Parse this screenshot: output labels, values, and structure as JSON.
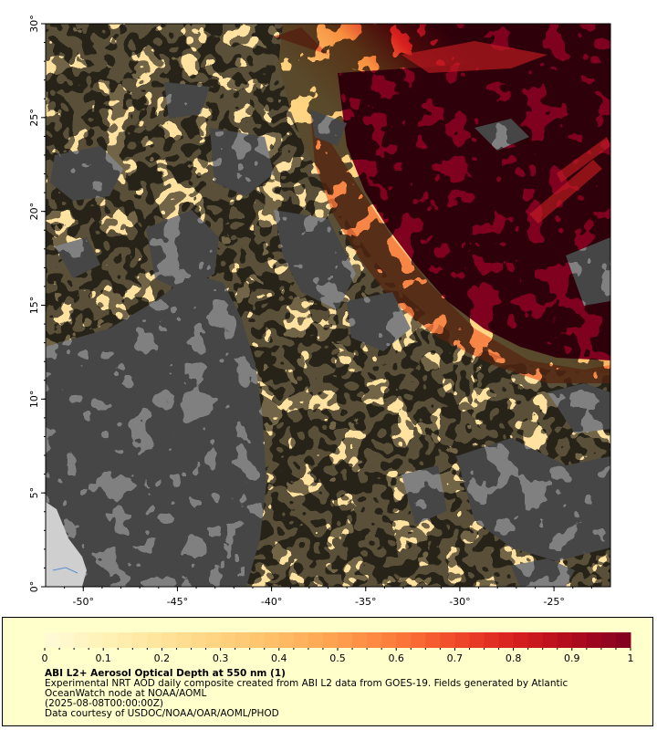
{
  "map": {
    "x_ticks": [
      "-50°",
      "-45°",
      "-40°",
      "-35°",
      "-30°",
      "-25°"
    ],
    "y_ticks": [
      "0°",
      "5°",
      "10°",
      "15°",
      "20°",
      "25°",
      "30°"
    ],
    "lon_range": [
      -52,
      -22
    ],
    "lat_range": [
      0,
      30
    ],
    "colors": {
      "no_data": "#808080",
      "land": "#cfcfcf",
      "low_aod": "#ffe9a8",
      "high_aod": "#800020"
    }
  },
  "colorbar": {
    "labels": [
      "0",
      "0.1",
      "0.2",
      "0.3",
      "0.4",
      "0.5",
      "0.6",
      "0.7",
      "0.8",
      "0.9",
      "1"
    ],
    "range": [
      0,
      1
    ],
    "colors": [
      "#fffbd8",
      "#fff2b8",
      "#ffe49a",
      "#ffd27e",
      "#ffbd66",
      "#fea04e",
      "#fc7b3a",
      "#f04a2a",
      "#d8201e",
      "#b00a1e",
      "#800020"
    ]
  },
  "legend": {
    "title": "ABI L2+ Aerosol Optical Depth at 550 nm (1)",
    "line1": "Experimental NRT AOD daily composite created from ABI L2 data from GOES-19. Fields generated by Atlantic OceanWatch node at NOAA/AOML",
    "line2": "(2025-08-08T00:00:00Z)",
    "line3": "Data courtesy of USDOC/NOAA/OAR/AOML/PHOD"
  }
}
